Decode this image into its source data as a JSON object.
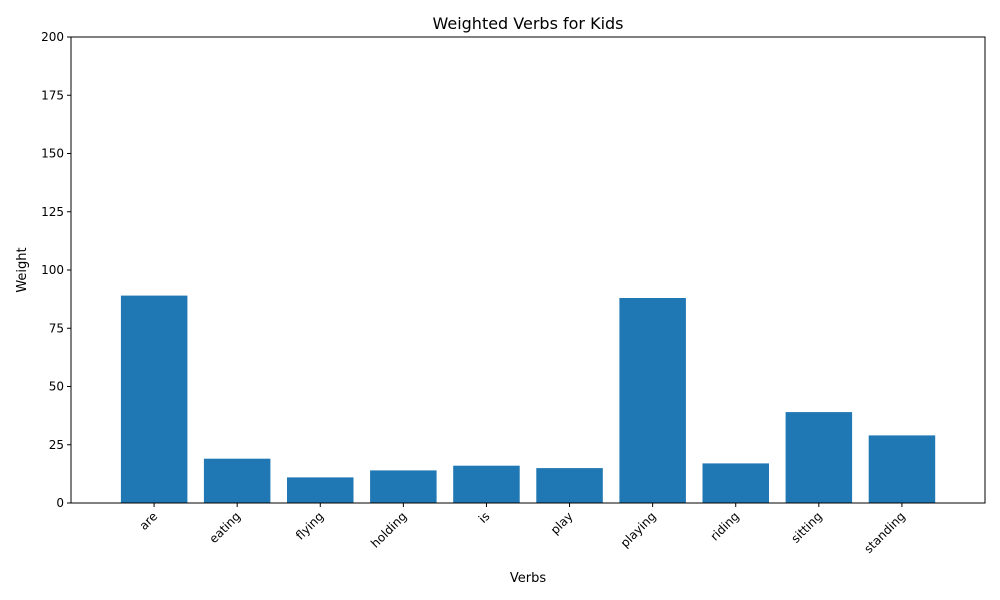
{
  "chart_data": {
    "type": "bar",
    "title": "Weighted Verbs for Kids",
    "xlabel": "Verbs",
    "ylabel": "Weight",
    "categories": [
      "are",
      "eating",
      "flying",
      "holding",
      "is",
      "play",
      "playing",
      "riding",
      "sitting",
      "standing"
    ],
    "values": [
      89,
      19,
      11,
      14,
      16,
      15,
      88,
      17,
      39,
      29
    ],
    "ylim": [
      0,
      200
    ],
    "yticks": [
      0,
      25,
      50,
      75,
      100,
      125,
      150,
      175,
      200
    ],
    "grid": false,
    "legend": "none",
    "bar_color": "#1f77b4"
  }
}
